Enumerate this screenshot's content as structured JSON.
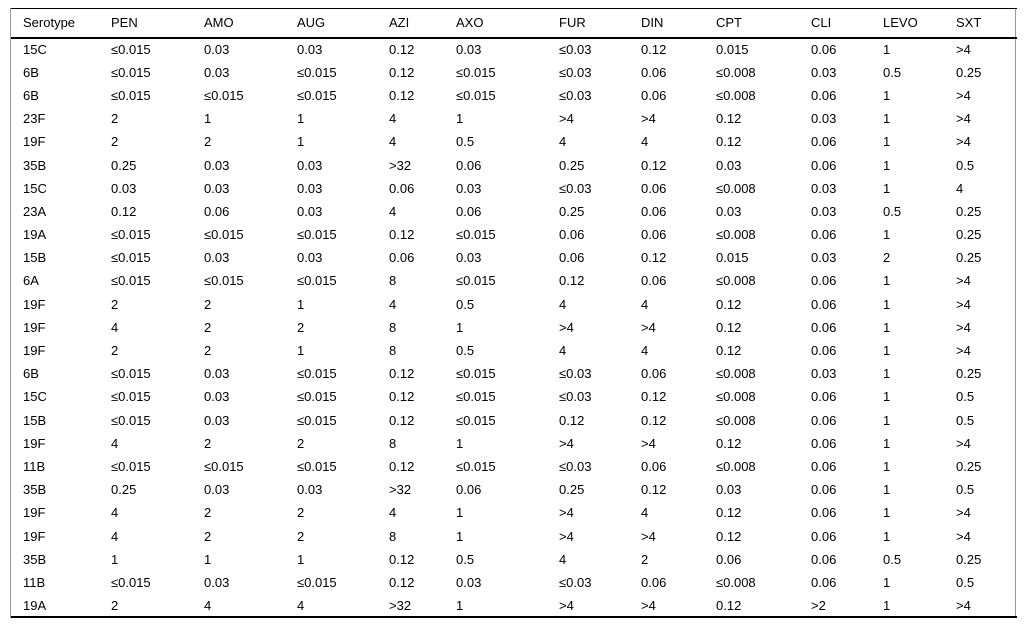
{
  "table": {
    "columns": [
      "Serotype",
      "PEN",
      "AMO",
      "AUG",
      "AZI",
      "AXO",
      "FUR",
      "DIN",
      "CPT",
      "CLI",
      "LEVO",
      "SXT"
    ],
    "rows": [
      [
        "15C",
        "≤0.015",
        "0.03",
        "0.03",
        "0.12",
        "0.03",
        "≤0.03",
        "0.12",
        "0.015",
        "0.06",
        "1",
        ">4"
      ],
      [
        "6B",
        "≤0.015",
        "0.03",
        "≤0.015",
        "0.12",
        "≤0.015",
        "≤0.03",
        "0.06",
        "≤0.008",
        "0.03",
        "0.5",
        "0.25"
      ],
      [
        "6B",
        "≤0.015",
        "≤0.015",
        "≤0.015",
        "0.12",
        "≤0.015",
        "≤0.03",
        "0.06",
        "≤0.008",
        "0.06",
        "1",
        ">4"
      ],
      [
        "23F",
        "2",
        "1",
        "1",
        "4",
        "1",
        ">4",
        ">4",
        "0.12",
        "0.03",
        "1",
        ">4"
      ],
      [
        "19F",
        "2",
        "2",
        "1",
        "4",
        "0.5",
        "4",
        "4",
        "0.12",
        "0.06",
        "1",
        ">4"
      ],
      [
        "35B",
        "0.25",
        "0.03",
        "0.03",
        ">32",
        "0.06",
        "0.25",
        "0.12",
        "0.03",
        "0.06",
        "1",
        "0.5"
      ],
      [
        "15C",
        "0.03",
        "0.03",
        "0.03",
        "0.06",
        "0.03",
        "≤0.03",
        "0.06",
        "≤0.008",
        "0.03",
        "1",
        "4"
      ],
      [
        "23A",
        "0.12",
        "0.06",
        "0.03",
        "4",
        "0.06",
        "0.25",
        "0.06",
        "0.03",
        "0.03",
        "0.5",
        "0.25"
      ],
      [
        "19A",
        "≤0.015",
        "≤0.015",
        "≤0.015",
        "0.12",
        "≤0.015",
        "0.06",
        "0.06",
        "≤0.008",
        "0.06",
        "1",
        "0.25"
      ],
      [
        "15B",
        "≤0.015",
        "0.03",
        "0.03",
        "0.06",
        "0.03",
        "0.06",
        "0.12",
        "0.015",
        "0.03",
        "2",
        "0.25"
      ],
      [
        "6A",
        "≤0.015",
        "≤0.015",
        "≤0.015",
        "8",
        "≤0.015",
        "0.12",
        "0.06",
        "≤0.008",
        "0.06",
        "1",
        ">4"
      ],
      [
        "19F",
        "2",
        "2",
        "1",
        "4",
        "0.5",
        "4",
        "4",
        "0.12",
        "0.06",
        "1",
        ">4"
      ],
      [
        "19F",
        "4",
        "2",
        "2",
        "8",
        "1",
        ">4",
        ">4",
        "0.12",
        "0.06",
        "1",
        ">4"
      ],
      [
        "19F",
        "2",
        "2",
        "1",
        "8",
        "0.5",
        "4",
        "4",
        "0.12",
        "0.06",
        "1",
        ">4"
      ],
      [
        "6B",
        "≤0.015",
        "0.03",
        "≤0.015",
        "0.12",
        "≤0.015",
        "≤0.03",
        "0.06",
        "≤0.008",
        "0.03",
        "1",
        "0.25"
      ],
      [
        "15C",
        "≤0.015",
        "0.03",
        "≤0.015",
        "0.12",
        "≤0.015",
        "≤0.03",
        "0.12",
        "≤0.008",
        "0.06",
        "1",
        "0.5"
      ],
      [
        "15B",
        "≤0.015",
        "0.03",
        "≤0.015",
        "0.12",
        "≤0.015",
        "0.12",
        "0.12",
        "≤0.008",
        "0.06",
        "1",
        "0.5"
      ],
      [
        "19F",
        "4",
        "2",
        "2",
        "8",
        "1",
        ">4",
        ">4",
        "0.12",
        "0.06",
        "1",
        ">4"
      ],
      [
        "11B",
        "≤0.015",
        "≤0.015",
        "≤0.015",
        "0.12",
        "≤0.015",
        "≤0.03",
        "0.06",
        "≤0.008",
        "0.06",
        "1",
        "0.25"
      ],
      [
        "35B",
        "0.25",
        "0.03",
        "0.03",
        ">32",
        "0.06",
        "0.25",
        "0.12",
        "0.03",
        "0.06",
        "1",
        "0.5"
      ],
      [
        "19F",
        "4",
        "2",
        "2",
        "4",
        "1",
        ">4",
        "4",
        "0.12",
        "0.06",
        "1",
        ">4"
      ],
      [
        "19F",
        "4",
        "2",
        "2",
        "8",
        "1",
        ">4",
        ">4",
        "0.12",
        "0.06",
        "1",
        ">4"
      ],
      [
        "35B",
        "1",
        "1",
        "1",
        "0.12",
        "0.5",
        "4",
        "2",
        "0.06",
        "0.06",
        "0.5",
        "0.25"
      ],
      [
        "11B",
        "≤0.015",
        "0.03",
        "≤0.015",
        "0.12",
        "0.03",
        "≤0.03",
        "0.06",
        "≤0.008",
        "0.06",
        "1",
        "0.5"
      ],
      [
        "19A",
        "2",
        "4",
        "4",
        ">32",
        "1",
        ">4",
        ">4",
        "0.12",
        ">2",
        "1",
        ">4"
      ]
    ]
  },
  "chart_data": {
    "type": "table",
    "title": "",
    "columns": [
      "Serotype",
      "PEN",
      "AMO",
      "AUG",
      "AZI",
      "AXO",
      "FUR",
      "DIN",
      "CPT",
      "CLI",
      "LEVO",
      "SXT"
    ],
    "row_count": 25
  },
  "colors": {
    "background": "#ffffff",
    "text": "#000000",
    "rule_heavy": "#000000",
    "rule_side": "#9a9a9a"
  }
}
